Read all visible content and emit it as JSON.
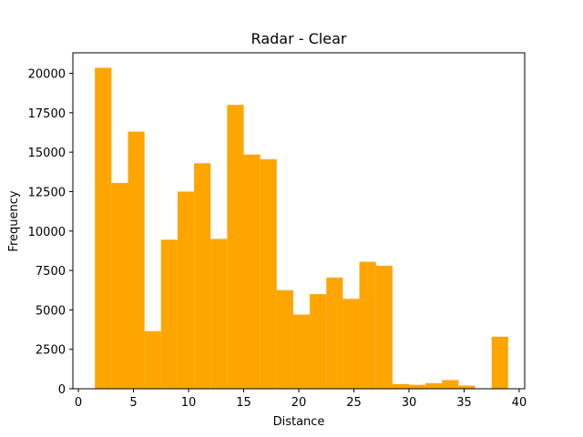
{
  "chart_data": {
    "type": "bar",
    "title": "Radar - Clear",
    "xlabel": "Distance",
    "ylabel": "Frequency",
    "xlim": [
      -0.5,
      40.5
    ],
    "ylim": [
      0,
      21300
    ],
    "grid": false,
    "legend": "none",
    "bar_color": "#FFA500",
    "bin_edges": [
      1.5,
      3.0,
      4.5,
      6.0,
      7.5,
      9.0,
      10.5,
      12.0,
      13.5,
      15.0,
      16.5,
      18.0,
      19.5,
      21.0,
      22.5,
      24.0,
      25.5,
      27.0,
      28.5,
      30.0,
      31.5,
      33.0,
      34.5,
      36.0,
      37.5,
      39.0
    ],
    "values": [
      20350,
      13050,
      16300,
      3650,
      9450,
      12500,
      14300,
      9500,
      18000,
      14850,
      14550,
      6250,
      4700,
      6000,
      7050,
      5700,
      8050,
      7800,
      300,
      250,
      350,
      550,
      200,
      0,
      3300
    ],
    "x_ticks": [
      0,
      5,
      10,
      15,
      20,
      25,
      30,
      35,
      40
    ],
    "y_ticks": [
      0,
      2500,
      5000,
      7500,
      10000,
      12500,
      15000,
      17500,
      20000
    ]
  }
}
